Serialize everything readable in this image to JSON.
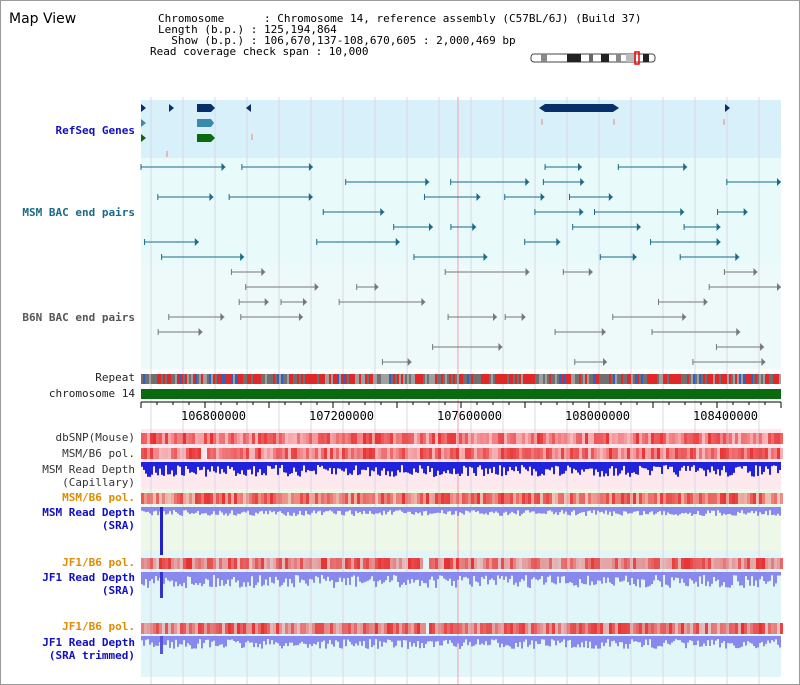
{
  "header": {
    "title": "Map View",
    "info_lines": [
      "Chromosome      : Chromosome 14, reference assembly (C57BL/6J) (Build 37)",
      "Length (b.p.) : 125,194,864",
      "  Show (b.p.) : 106,670,137-108,670,605 : 2,000,469 bp",
      "Read coverage check span : 10,000"
    ]
  },
  "tracks": {
    "refseq": "RefSeq Genes",
    "msm_bac": "MSM BAC end pairs",
    "b6n_bac": "B6N BAC end pairs",
    "repeat": "Repeat",
    "chromosome": "chromosome 14",
    "dbsnp": "dbSNP(Mouse)",
    "msm_b6_pol_1": "MSM/B6 pol.",
    "msm_depth_cap_1": "MSM Read Depth",
    "msm_depth_cap_2": "(Capillary)",
    "msm_b6_pol_2": "MSM/B6 pol.",
    "msm_depth_sra_1": "MSM Read Depth",
    "msm_depth_sra_2": "(SRA)",
    "jf1_b6_pol_1": "JF1/B6 pol.",
    "jf1_depth_sra_1": "JF1 Read Depth",
    "jf1_depth_sra_2": "(SRA)",
    "jf1_b6_pol_2": "JF1/B6 pol.",
    "jf1_depth_trim_1": "JF1 Read Depth",
    "jf1_depth_trim_2": "(SRA trimmed)"
  },
  "axis": {
    "ticks": [
      "106800000",
      "107200000",
      "107600000",
      "108000000",
      "108400000"
    ]
  },
  "colors": {
    "refseq_bg": "#d8f0fa",
    "bac_bg": "#e8fafa",
    "b6n_bg": "#eefafa",
    "gene_dark": "#0a2e6a",
    "gene_teal": "#3a8ab0",
    "gene_green": "#0a6a10",
    "bac_line": "#1a6a8a",
    "b6n_line": "#777777",
    "chrom_green": "#0a6a10",
    "snp_red": "#e83030",
    "depth_blue": "#2222dd",
    "depth_light": "#8888ee"
  }
}
